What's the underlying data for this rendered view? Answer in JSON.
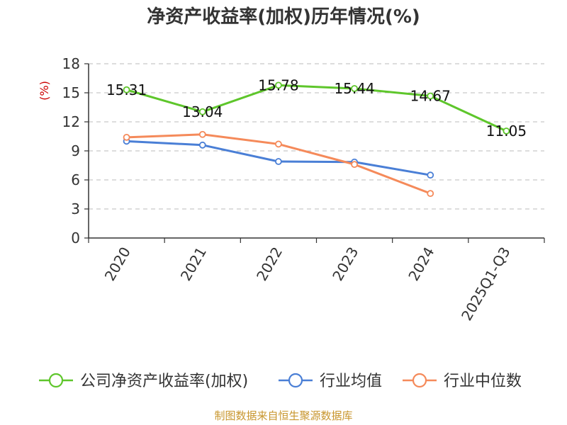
{
  "chart_data": {
    "type": "line",
    "title": "净资产收益率(加权)历年情况(%)",
    "ylabel": "(%)",
    "xlabel": "",
    "categories": [
      "2020",
      "2021",
      "2022",
      "2023",
      "2024",
      "2025Q1-Q3"
    ],
    "ylim": [
      0,
      18
    ],
    "yticks": [
      0,
      3,
      6,
      9,
      12,
      15,
      18
    ],
    "grid": true,
    "legend_position": "bottom",
    "series": [
      {
        "name": "公司净资产收益率(加权)",
        "color": "#5ec62b",
        "values": [
          15.31,
          13.04,
          15.78,
          15.44,
          14.67,
          11.05
        ],
        "labels": [
          "15.31",
          "13.04",
          "15.78",
          "15.44",
          "14.67",
          "11.05"
        ]
      },
      {
        "name": "行业均值",
        "color": "#4a7fd6",
        "values": [
          10.0,
          9.6,
          7.9,
          7.85,
          6.5,
          null
        ]
      },
      {
        "name": "行业中位数",
        "color": "#f58a5a",
        "values": [
          10.4,
          10.7,
          9.7,
          7.6,
          4.6,
          null
        ]
      }
    ],
    "source": "制图数据来自恒生聚源数据库"
  }
}
